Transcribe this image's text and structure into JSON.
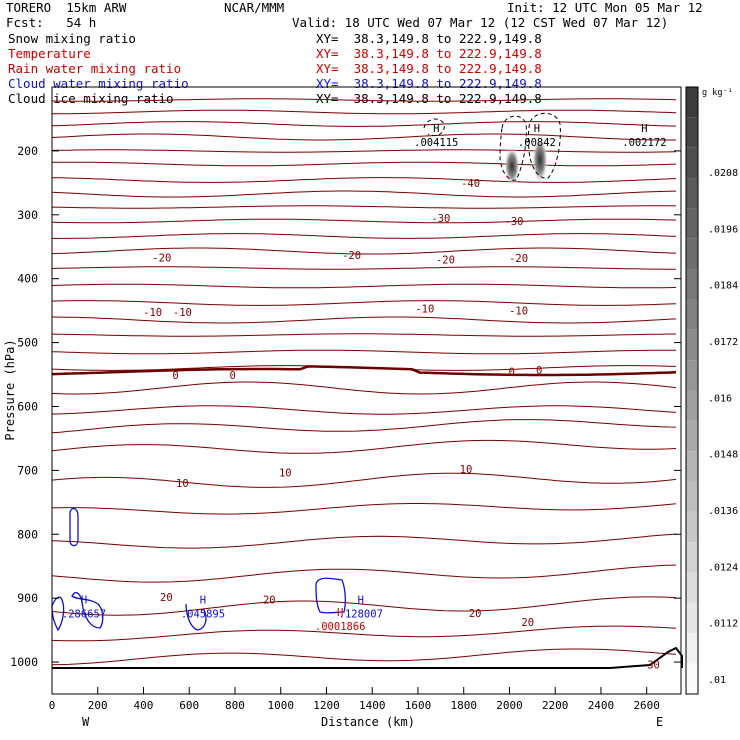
{
  "header": {
    "model": "TORERO  15km ARW",
    "org": "NCAR/MMM",
    "init": "Init: 12 UTC Mon 05 Mar 12",
    "fcst": "Fcst:   54 h",
    "valid": "Valid: 18 UTC Wed 07 Mar 12 (12 CST Wed 07 Mar 12)",
    "fields": [
      {
        "name": "Snow mixing ratio",
        "xy": "XY=  38.3,149.8 to 222.9,149.8",
        "color": "#000000"
      },
      {
        "name": "Temperature",
        "xy": "XY=  38.3,149.8 to 222.9,149.8",
        "color": "#cc0000"
      },
      {
        "name": "Rain water mixing ratio",
        "xy": "XY=  38.3,149.8 to 222.9,149.8",
        "color": "#cc0000"
      },
      {
        "name": "Cloud water mixing ratio",
        "xy": "XY=  38.3,149.8 to 222.9,149.8",
        "color": "#1010cc"
      },
      {
        "name": "Cloud ice mixing ratio",
        "xy": "XY=  38.3,149.8 to 222.9,149.8",
        "color": "#000000"
      }
    ]
  },
  "chart_data": {
    "type": "contour",
    "xlabel": "Distance (km)",
    "ylabel": "Pressure (hPa)",
    "xlim": [
      0,
      2750
    ],
    "ylim": [
      1050,
      100
    ],
    "x_ticks": [
      0,
      200,
      400,
      600,
      800,
      1000,
      1200,
      1400,
      1600,
      1800,
      2000,
      2200,
      2400,
      2600
    ],
    "y_ticks": [
      200,
      300,
      400,
      500,
      600,
      700,
      800,
      900,
      1000
    ],
    "left_end_label": "W",
    "right_end_label": "E",
    "colorbar": {
      "unit": "g kg⁻¹",
      "ticks": [
        ".0208",
        ".0196",
        ".0184",
        ".0172",
        ".016",
        ".0148",
        ".0136",
        ".0124",
        ".0112",
        ".01"
      ]
    },
    "temperature_contour_labels": [
      {
        "x": 1830,
        "p": 250,
        "text": "-40"
      },
      {
        "x": 1700,
        "p": 305,
        "text": "-30"
      },
      {
        "x": 2020,
        "p": 310,
        "text": "-30"
      },
      {
        "x": 480,
        "p": 367,
        "text": "-20"
      },
      {
        "x": 1310,
        "p": 363,
        "text": "-20"
      },
      {
        "x": 1720,
        "p": 370,
        "text": "-20"
      },
      {
        "x": 2040,
        "p": 368,
        "text": "-20"
      },
      {
        "x": 440,
        "p": 452,
        "text": "-10"
      },
      {
        "x": 570,
        "p": 452,
        "text": "-10"
      },
      {
        "x": 1630,
        "p": 447,
        "text": "-10"
      },
      {
        "x": 2040,
        "p": 450,
        "text": "-10"
      },
      {
        "x": 540,
        "p": 551,
        "text": "0"
      },
      {
        "x": 790,
        "p": 551,
        "text": "0"
      },
      {
        "x": 2010,
        "p": 545,
        "text": "0"
      },
      {
        "x": 2130,
        "p": 543,
        "text": "0"
      },
      {
        "x": 1020,
        "p": 703,
        "text": "10"
      },
      {
        "x": 1810,
        "p": 698,
        "text": "10"
      },
      {
        "x": 570,
        "p": 720,
        "text": "10"
      },
      {
        "x": 500,
        "p": 898,
        "text": "20"
      },
      {
        "x": 950,
        "p": 902,
        "text": "20"
      },
      {
        "x": 1850,
        "p": 923,
        "text": "20"
      },
      {
        "x": 2080,
        "p": 937,
        "text": "20"
      },
      {
        "x": 2630,
        "p": 1004,
        "text": "30"
      }
    ],
    "maxima": [
      {
        "field": "snow",
        "x": 1680,
        "p": 180,
        "value": ".004115",
        "color": "#000000"
      },
      {
        "field": "snow",
        "x": 2120,
        "p": 180,
        "value": ".00842",
        "color": "#000000"
      },
      {
        "field": "snow",
        "x": 2590,
        "p": 180,
        "value": ".002172",
        "color": "#000000"
      },
      {
        "field": "cloud water",
        "x": 140,
        "p": 918,
        "value": ".286657",
        "color": "#1010cc"
      },
      {
        "field": "cloud water",
        "x": 660,
        "p": 918,
        "value": ".045895",
        "color": "#1010cc"
      },
      {
        "field": "rain water",
        "x": 1260,
        "p": 937,
        "value": ".0001866",
        "color": "#cc0000"
      },
      {
        "field": "cloud water",
        "x": 1350,
        "p": 918,
        "value": ".128007",
        "color": "#1010cc"
      }
    ]
  }
}
